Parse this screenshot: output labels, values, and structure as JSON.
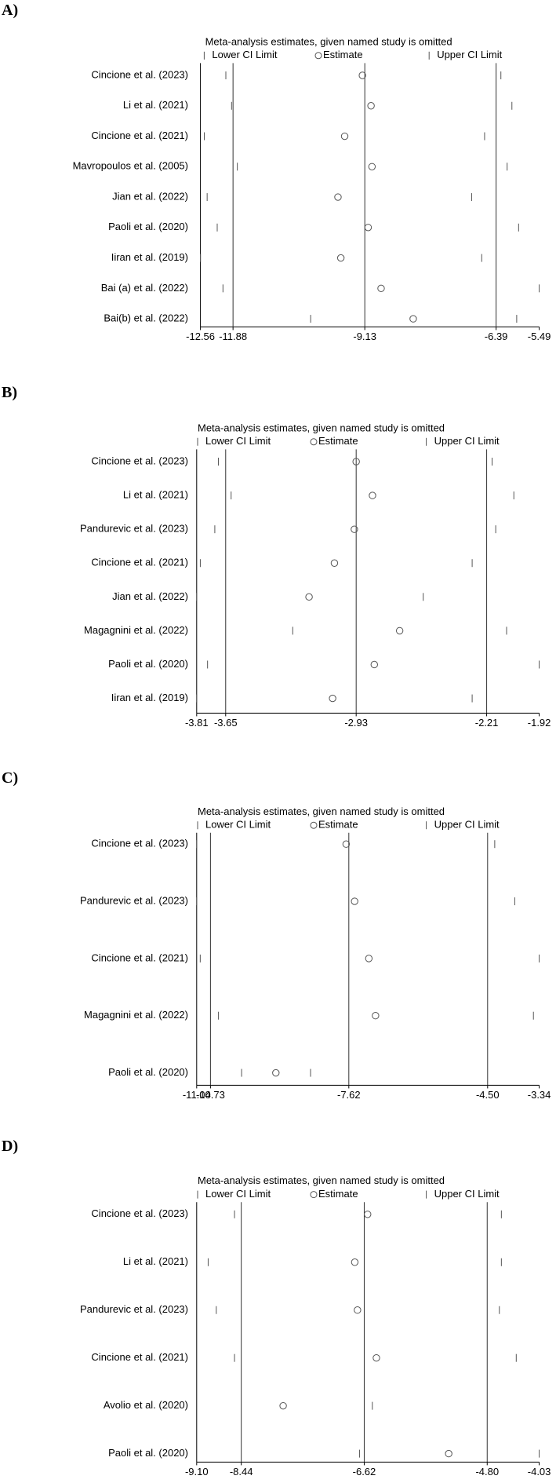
{
  "chart_data": [
    {
      "type": "sensitivity",
      "panel_label": "A)",
      "title": "Meta-analysis estimates, given named study is omitted",
      "categories": [
        "Cincione et al. (2023)",
        "Li et al. (2021)",
        "Cincione et al. (2021)",
        "Mavropoulos et al. (2005)",
        "Jian et al. (2022)",
        "Paoli et al. (2020)",
        "Iiran et al. (2019)",
        "Bai (a) et al. (2022)",
        "Bai(b) et al. (2022)"
      ],
      "series": [
        {
          "name": "Lower CI Limit",
          "values": [
            -12.03,
            -11.91,
            -12.48,
            -11.79,
            -12.42,
            -12.21,
            -12.56,
            -12.09,
            -10.26
          ]
        },
        {
          "name": "Estimate",
          "values": [
            -9.18,
            -9.0,
            -9.55,
            -8.98,
            -9.69,
            -9.06,
            -9.63,
            -8.79,
            -8.12
          ]
        },
        {
          "name": "Upper CI Limit",
          "values": [
            -6.29,
            -6.06,
            -6.63,
            -6.16,
            -6.9,
            -5.92,
            -6.69,
            -5.49,
            -5.96
          ]
        }
      ],
      "reference_lines": [
        -11.88,
        -9.13,
        -6.39
      ],
      "xlim": [
        -12.56,
        -5.49
      ],
      "xticks": [
        -12.56,
        -11.88,
        -9.13,
        -6.39,
        -5.49
      ]
    },
    {
      "type": "sensitivity",
      "panel_label": "B)",
      "title": "Meta-analysis estimates, given named study is omitted",
      "categories": [
        "Cincione et al. (2023)",
        "Li et al. (2021)",
        "Pandurevic et al. (2023)",
        "Cincione et al. (2021)",
        "Jian et al. (2022)",
        "Magagnini et al. (2022)",
        "Paoli et al. (2020)",
        "Iiran et al. (2019)"
      ],
      "series": [
        {
          "name": "Lower CI Limit",
          "values": [
            -3.69,
            -3.62,
            -3.71,
            -3.79,
            -3.81,
            -3.28,
            -3.75,
            -3.81
          ]
        },
        {
          "name": "Estimate",
          "values": [
            -2.93,
            -2.84,
            -2.94,
            -3.05,
            -3.19,
            -2.69,
            -2.83,
            -3.06
          ]
        },
        {
          "name": "Upper CI Limit",
          "values": [
            -2.18,
            -2.06,
            -2.16,
            -2.29,
            -2.56,
            -2.1,
            -1.92,
            -2.29
          ]
        }
      ],
      "reference_lines": [
        -3.65,
        -2.93,
        -2.21
      ],
      "xlim": [
        -3.81,
        -1.92
      ],
      "xticks": [
        -3.81,
        -3.65,
        -2.93,
        -2.21,
        -1.92
      ]
    },
    {
      "type": "sensitivity",
      "panel_label": "C)",
      "title": "Meta-analysis estimates, given named study is omitted",
      "categories": [
        "Cincione et al. (2023)",
        "Pandurevic et al. (2023)",
        "Cincione et al. (2021)",
        "Magagnini et al. (2022)",
        "Paoli et al. (2020)"
      ],
      "series": [
        {
          "name": "Lower CI Limit",
          "values": [
            -11.04,
            -11.04,
            -10.96,
            -10.55,
            -10.03
          ]
        },
        {
          "name": "Estimate",
          "values": [
            -7.68,
            -7.49,
            -7.17,
            -7.02,
            -9.26
          ]
        },
        {
          "name": "Upper CI Limit",
          "values": [
            -4.34,
            -3.89,
            -3.34,
            -3.47,
            -8.48
          ]
        }
      ],
      "reference_lines": [
        -10.73,
        -7.62,
        -4.5
      ],
      "xlim": [
        -11.04,
        -3.34
      ],
      "xticks": [
        -11.04,
        -10.73,
        -7.62,
        {
          "value": -4.5,
          "label": "-4.50"
        },
        -3.34
      ]
    },
    {
      "type": "sensitivity",
      "panel_label": "D)",
      "title": "Meta-analysis estimates, given named study is omitted",
      "categories": [
        "Cincione et al. (2023)",
        "Li et al. (2021)",
        "Pandurevic et al. (2023)",
        "Cincione et al. (2021)",
        "Avolio et al. (2020)",
        "Paoli et al. (2020)"
      ],
      "series": [
        {
          "name": "Lower CI Limit",
          "values": [
            -8.54,
            -8.93,
            -8.81,
            -8.54,
            null,
            -6.69
          ]
        },
        {
          "name": "Estimate",
          "values": [
            -6.57,
            -6.76,
            -6.72,
            -6.44,
            -7.82,
            -5.37
          ]
        },
        {
          "name": "Upper CI Limit",
          "values": [
            -4.59,
            -4.59,
            -4.62,
            -4.37,
            -6.5,
            -4.03
          ]
        }
      ],
      "reference_lines": [
        -8.44,
        -6.62,
        -4.8
      ],
      "xlim": [
        -9.1,
        -4.03
      ],
      "xticks": [
        {
          "value": -9.1,
          "label": "-9.10"
        },
        -8.44,
        -6.62,
        {
          "value": -4.8,
          "label": "-4.80"
        },
        -4.03
      ]
    }
  ]
}
